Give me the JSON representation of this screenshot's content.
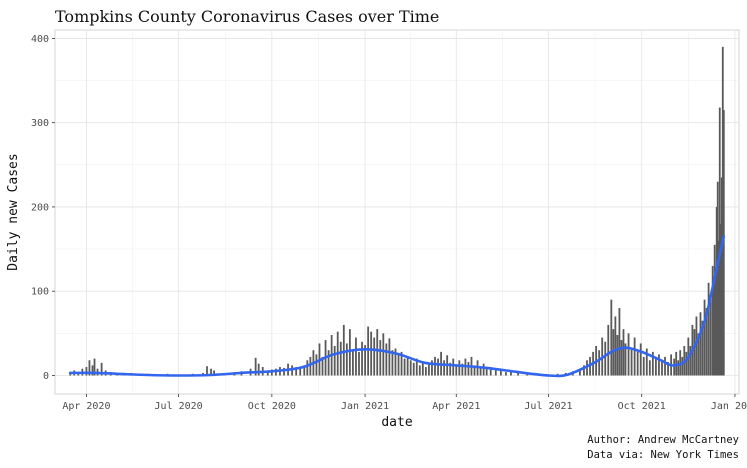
{
  "chart_data": {
    "type": "bar",
    "title": "Tompkins County Coronavirus Cases over Time",
    "xlabel": "date",
    "ylabel": "Daily new Cases",
    "caption": [
      "Author: Andrew McCartney",
      "Data via: New York Times"
    ],
    "xlim": [
      "2020-03-01",
      "2022-01-05"
    ],
    "ylim": [
      -22,
      410
    ],
    "x_ticks": [
      {
        "date": "2020-04-01",
        "label": "Apr 2020"
      },
      {
        "date": "2020-07-01",
        "label": "Jul 2020"
      },
      {
        "date": "2020-10-01",
        "label": "Oct 2020"
      },
      {
        "date": "2021-01-01",
        "label": "Jan 2021"
      },
      {
        "date": "2021-04-01",
        "label": "Apr 2021"
      },
      {
        "date": "2021-07-01",
        "label": "Jul 2021"
      },
      {
        "date": "2021-10-01",
        "label": "Oct 2021"
      },
      {
        "date": "2022-01-01",
        "label": "Jan 2022"
      }
    ],
    "y_ticks": [
      0,
      100,
      200,
      300,
      400
    ],
    "grid": true,
    "bar_color": "#595959",
    "smooth_color": "#3366ee",
    "series": [
      {
        "kind": "bars",
        "points": [
          [
            "2020-03-16",
            3
          ],
          [
            "2020-03-20",
            6
          ],
          [
            "2020-03-24",
            4
          ],
          [
            "2020-03-28",
            8
          ],
          [
            "2020-04-01",
            10
          ],
          [
            "2020-04-04",
            18
          ],
          [
            "2020-04-07",
            12
          ],
          [
            "2020-04-09",
            20
          ],
          [
            "2020-04-12",
            8
          ],
          [
            "2020-04-16",
            15
          ],
          [
            "2020-04-20",
            6
          ],
          [
            "2020-04-25",
            4
          ],
          [
            "2020-05-01",
            3
          ],
          [
            "2020-05-08",
            2
          ],
          [
            "2020-05-15",
            3
          ],
          [
            "2020-05-22",
            1
          ],
          [
            "2020-06-01",
            2
          ],
          [
            "2020-06-10",
            1
          ],
          [
            "2020-06-20",
            2
          ],
          [
            "2020-07-01",
            1
          ],
          [
            "2020-07-15",
            2
          ],
          [
            "2020-07-25",
            3
          ],
          [
            "2020-07-29",
            11
          ],
          [
            "2020-08-02",
            8
          ],
          [
            "2020-08-05",
            6
          ],
          [
            "2020-08-15",
            2
          ],
          [
            "2020-08-25",
            4
          ],
          [
            "2020-09-01",
            5
          ],
          [
            "2020-09-10",
            8
          ],
          [
            "2020-09-15",
            21
          ],
          [
            "2020-09-18",
            14
          ],
          [
            "2020-09-22",
            10
          ],
          [
            "2020-09-27",
            6
          ],
          [
            "2020-10-01",
            7
          ],
          [
            "2020-10-05",
            8
          ],
          [
            "2020-10-09",
            10
          ],
          [
            "2020-10-13",
            9
          ],
          [
            "2020-10-17",
            14
          ],
          [
            "2020-10-21",
            12
          ],
          [
            "2020-10-25",
            10
          ],
          [
            "2020-10-29",
            8
          ],
          [
            "2020-11-02",
            12
          ],
          [
            "2020-11-05",
            18
          ],
          [
            "2020-11-08",
            22
          ],
          [
            "2020-11-11",
            30
          ],
          [
            "2020-11-14",
            25
          ],
          [
            "2020-11-17",
            38
          ],
          [
            "2020-11-20",
            22
          ],
          [
            "2020-11-23",
            42
          ],
          [
            "2020-11-26",
            30
          ],
          [
            "2020-11-29",
            48
          ],
          [
            "2020-12-02",
            35
          ],
          [
            "2020-12-05",
            52
          ],
          [
            "2020-12-08",
            40
          ],
          [
            "2020-12-11",
            60
          ],
          [
            "2020-12-14",
            38
          ],
          [
            "2020-12-17",
            55
          ],
          [
            "2020-12-20",
            30
          ],
          [
            "2020-12-23",
            45
          ],
          [
            "2020-12-26",
            28
          ],
          [
            "2020-12-29",
            40
          ],
          [
            "2021-01-01",
            36
          ],
          [
            "2021-01-04",
            58
          ],
          [
            "2021-01-07",
            52
          ],
          [
            "2021-01-10",
            45
          ],
          [
            "2021-01-13",
            55
          ],
          [
            "2021-01-16",
            42
          ],
          [
            "2021-01-19",
            50
          ],
          [
            "2021-01-22",
            38
          ],
          [
            "2021-01-25",
            44
          ],
          [
            "2021-01-28",
            30
          ],
          [
            "2021-01-31",
            32
          ],
          [
            "2021-02-03",
            25
          ],
          [
            "2021-02-06",
            28
          ],
          [
            "2021-02-09",
            20
          ],
          [
            "2021-02-12",
            22
          ],
          [
            "2021-02-15",
            18
          ],
          [
            "2021-02-18",
            15
          ],
          [
            "2021-02-21",
            20
          ],
          [
            "2021-02-24",
            12
          ],
          [
            "2021-02-27",
            16
          ],
          [
            "2021-03-02",
            10
          ],
          [
            "2021-03-05",
            14
          ],
          [
            "2021-03-08",
            18
          ],
          [
            "2021-03-11",
            22
          ],
          [
            "2021-03-14",
            20
          ],
          [
            "2021-03-17",
            28
          ],
          [
            "2021-03-20",
            18
          ],
          [
            "2021-03-23",
            24
          ],
          [
            "2021-03-26",
            15
          ],
          [
            "2021-03-29",
            20
          ],
          [
            "2021-04-01",
            12
          ],
          [
            "2021-04-04",
            18
          ],
          [
            "2021-04-07",
            14
          ],
          [
            "2021-04-10",
            20
          ],
          [
            "2021-04-13",
            16
          ],
          [
            "2021-04-16",
            22
          ],
          [
            "2021-04-19",
            12
          ],
          [
            "2021-04-22",
            18
          ],
          [
            "2021-04-25",
            10
          ],
          [
            "2021-04-28",
            14
          ],
          [
            "2021-05-01",
            8
          ],
          [
            "2021-05-05",
            10
          ],
          [
            "2021-05-10",
            6
          ],
          [
            "2021-05-15",
            8
          ],
          [
            "2021-05-20",
            4
          ],
          [
            "2021-05-25",
            5
          ],
          [
            "2021-06-01",
            3
          ],
          [
            "2021-06-10",
            2
          ],
          [
            "2021-06-20",
            2
          ],
          [
            "2021-07-01",
            1
          ],
          [
            "2021-07-10",
            2
          ],
          [
            "2021-07-18",
            3
          ],
          [
            "2021-07-25",
            5
          ],
          [
            "2021-08-01",
            8
          ],
          [
            "2021-08-05",
            12
          ],
          [
            "2021-08-08",
            18
          ],
          [
            "2021-08-11",
            22
          ],
          [
            "2021-08-14",
            28
          ],
          [
            "2021-08-17",
            35
          ],
          [
            "2021-08-20",
            30
          ],
          [
            "2021-08-23",
            45
          ],
          [
            "2021-08-26",
            40
          ],
          [
            "2021-08-29",
            60
          ],
          [
            "2021-09-01",
            90
          ],
          [
            "2021-09-03",
            55
          ],
          [
            "2021-09-05",
            70
          ],
          [
            "2021-09-07",
            48
          ],
          [
            "2021-09-09",
            80
          ],
          [
            "2021-09-11",
            42
          ],
          [
            "2021-09-13",
            55
          ],
          [
            "2021-09-15",
            38
          ],
          [
            "2021-09-18",
            50
          ],
          [
            "2021-09-21",
            32
          ],
          [
            "2021-09-24",
            45
          ],
          [
            "2021-09-27",
            28
          ],
          [
            "2021-09-30",
            38
          ],
          [
            "2021-10-03",
            22
          ],
          [
            "2021-10-06",
            32
          ],
          [
            "2021-10-09",
            18
          ],
          [
            "2021-10-12",
            28
          ],
          [
            "2021-10-15",
            20
          ],
          [
            "2021-10-18",
            25
          ],
          [
            "2021-10-21",
            18
          ],
          [
            "2021-10-24",
            22
          ],
          [
            "2021-10-27",
            16
          ],
          [
            "2021-10-30",
            25
          ],
          [
            "2021-11-02",
            20
          ],
          [
            "2021-11-04",
            28
          ],
          [
            "2021-11-06",
            18
          ],
          [
            "2021-11-08",
            30
          ],
          [
            "2021-11-10",
            22
          ],
          [
            "2021-11-12",
            35
          ],
          [
            "2021-11-14",
            28
          ],
          [
            "2021-11-16",
            45
          ],
          [
            "2021-11-18",
            35
          ],
          [
            "2021-11-20",
            60
          ],
          [
            "2021-11-22",
            55
          ],
          [
            "2021-11-24",
            70
          ],
          [
            "2021-11-26",
            50
          ],
          [
            "2021-11-28",
            75
          ],
          [
            "2021-11-30",
            65
          ],
          [
            "2021-12-02",
            90
          ],
          [
            "2021-12-04",
            80
          ],
          [
            "2021-12-06",
            110
          ],
          [
            "2021-12-08",
            95
          ],
          [
            "2021-12-10",
            130
          ],
          [
            "2021-12-11",
            105
          ],
          [
            "2021-12-12",
            155
          ],
          [
            "2021-12-13",
            120
          ],
          [
            "2021-12-14",
            200
          ],
          [
            "2021-12-15",
            230
          ],
          [
            "2021-12-16",
            160
          ],
          [
            "2021-12-17",
            318
          ],
          [
            "2021-12-18",
            180
          ],
          [
            "2021-12-19",
            235
          ],
          [
            "2021-12-20",
            390
          ],
          [
            "2021-12-21",
            315
          ]
        ]
      },
      {
        "kind": "smooth",
        "points": [
          [
            "2020-03-16",
            3
          ],
          [
            "2020-04-10",
            3
          ],
          [
            "2020-05-01",
            2
          ],
          [
            "2020-06-01",
            0.5
          ],
          [
            "2020-07-01",
            0
          ],
          [
            "2020-08-01",
            0.5
          ],
          [
            "2020-09-01",
            3
          ],
          [
            "2020-10-01",
            5
          ],
          [
            "2020-11-01",
            10
          ],
          [
            "2020-12-01",
            25
          ],
          [
            "2021-01-01",
            31
          ],
          [
            "2021-02-01",
            26
          ],
          [
            "2021-03-01",
            15
          ],
          [
            "2021-04-01",
            12
          ],
          [
            "2021-05-01",
            9
          ],
          [
            "2021-06-01",
            4
          ],
          [
            "2021-07-01",
            0
          ],
          [
            "2021-07-20",
            1
          ],
          [
            "2021-08-15",
            15
          ],
          [
            "2021-09-01",
            28
          ],
          [
            "2021-09-15",
            33
          ],
          [
            "2021-10-01",
            28
          ],
          [
            "2021-10-20",
            18
          ],
          [
            "2021-11-01",
            12
          ],
          [
            "2021-11-15",
            20
          ],
          [
            "2021-12-01",
            60
          ],
          [
            "2021-12-10",
            105
          ],
          [
            "2021-12-21",
            165
          ]
        ]
      }
    ]
  }
}
